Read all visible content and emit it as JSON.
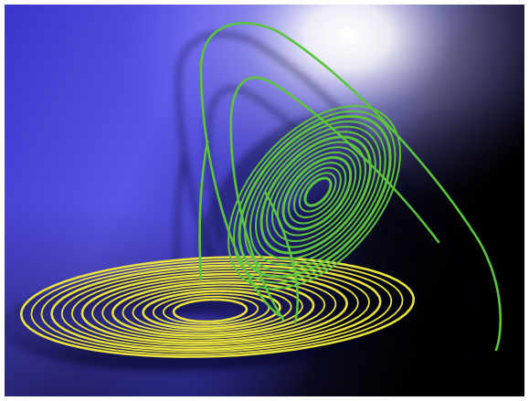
{
  "image": {
    "subject": "lorenz-attractor-render",
    "colors": {
      "background_blue": "#5a55e6",
      "highlight": "#ffffff",
      "shadow": "#000000",
      "upper_lobe": "#5cc43c",
      "lower_lobe": "#e8e23a"
    },
    "lobes": [
      {
        "name": "green-lobe",
        "loops": 15
      },
      {
        "name": "yellow-lobe",
        "loops": 16
      }
    ]
  }
}
